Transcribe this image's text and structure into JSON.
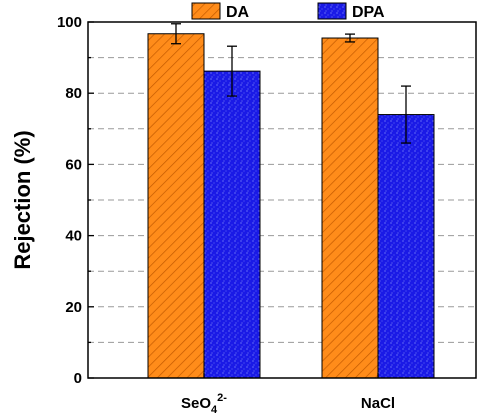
{
  "chart_data": {
    "type": "bar",
    "title": "",
    "xlabel": "",
    "ylabel": "Rejection (%)",
    "ylim": [
      0,
      100
    ],
    "yticks": [
      0,
      20,
      40,
      60,
      80,
      100
    ],
    "grid": "horizontal dashed",
    "legend_position": "top",
    "categories": [
      {
        "base": "SeO",
        "sub": "4",
        "sup": "2-"
      },
      {
        "base": "NaCl",
        "sub": "",
        "sup": ""
      }
    ],
    "series": [
      {
        "name": "DA",
        "color": "#ff8c1a",
        "pattern": "diagonal-hatch",
        "values": [
          96.7,
          95.5
        ],
        "errors": [
          2.8,
          1.1
        ]
      },
      {
        "name": "DPA",
        "color": "#1a1ae6",
        "pattern": "speckle",
        "values": [
          86.2,
          74.0
        ],
        "errors": [
          7.0,
          8.0
        ]
      }
    ]
  }
}
